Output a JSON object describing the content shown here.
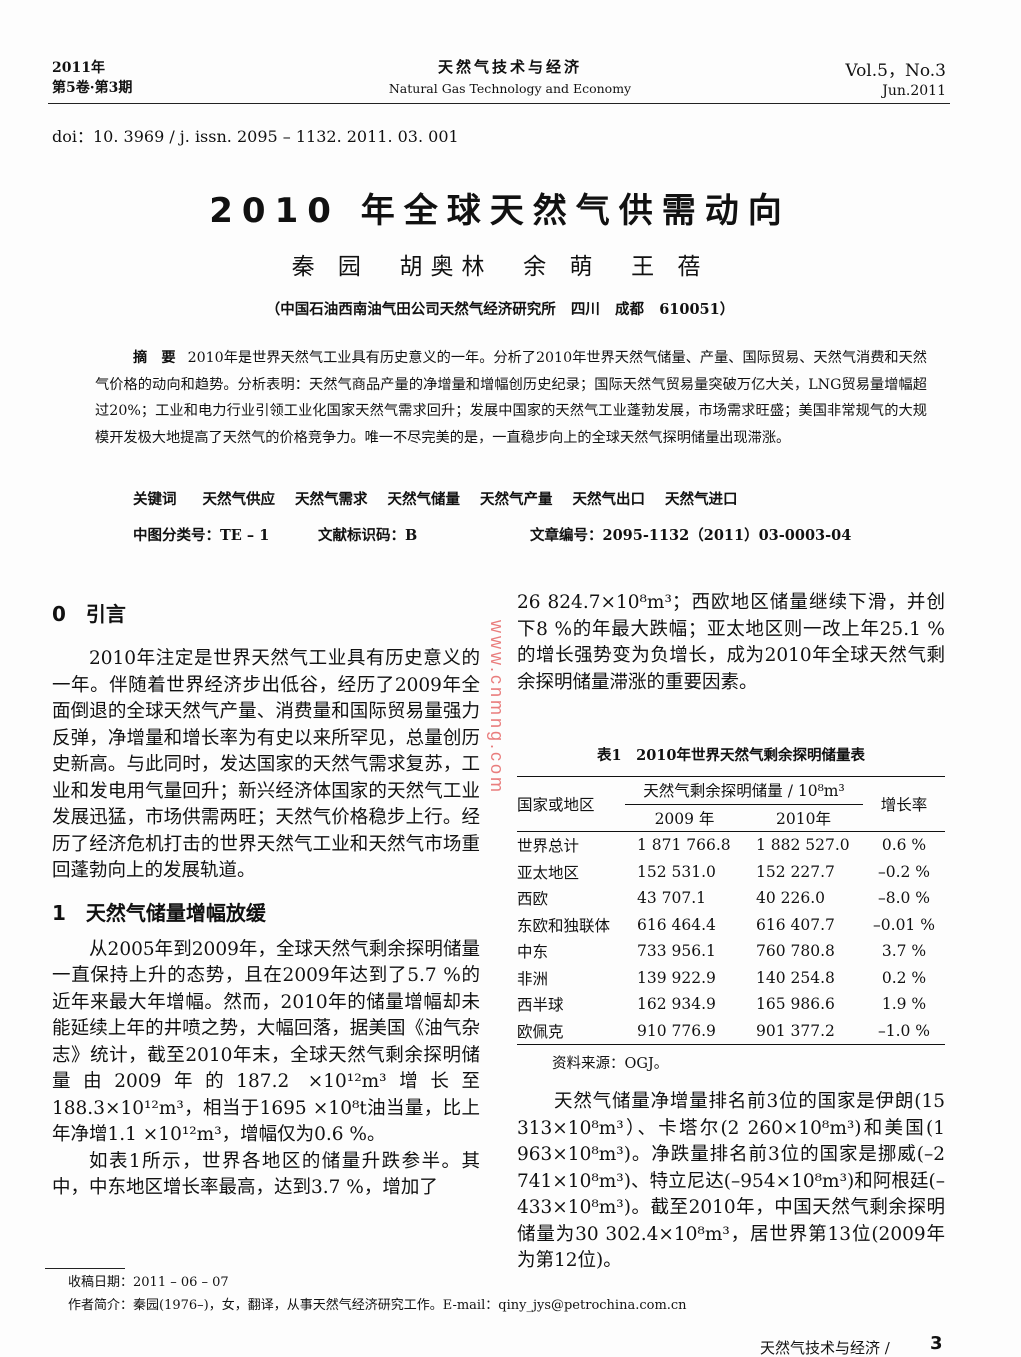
{
  "header": {
    "year": "2011年",
    "volume_issue": "第5卷·第3期",
    "journal_cn": "天然气技术与经济",
    "journal_en": "Natural Gas Technology and Economy",
    "vol_no": "Vol.5，No.3",
    "date": "Jun.2011"
  },
  "doi": "doi：10. 3969 / j. issn. 2095 – 1132. 2011. 03. 001",
  "title": "2010 年全球天然气供需动向",
  "authors": "秦 园  胡奥林  余 萌  王 蓓",
  "affiliation": "（中国石油西南油气田公司天然气经济研究所   四川   成都   610051）",
  "abstract": {
    "label": "摘　要",
    "text": "2010年是世界天然气工业具有历史意义的一年。分析了2010年世界天然气储量、产量、国际贸易、天然气消费和天然气价格的动向和趋势。分析表明：天然气商品产量的净增量和增幅创历史纪录；国际天然气贸易量突破万亿大关，LNG贸易量增幅超过20%；工业和电力行业引领工业化国家天然气需求回升；发展中国家的天然气工业蓬勃发展，市场需求旺盛；美国非常规气的大规模开发极大地提高了天然气的价格竞争力。唯一不尽完美的是，一直稳步向上的全球天然气探明储量出现滞涨。"
  },
  "keywords": {
    "label": "关键词",
    "items": [
      "天然气供应",
      "天然气需求",
      "天然气储量",
      "天然气产量",
      "天然气出口",
      "天然气进口"
    ]
  },
  "classification": {
    "clc": "中图分类号：TE – 1",
    "doc_code": "文献标识码：B",
    "article_no": "文章编号：2095-1132（2011）03-0003-04"
  },
  "watermark": "www.cnmng.com",
  "sections": {
    "s0_title": "0　引言",
    "s0_p1": "2010年注定是世界天然气工业具有历史意义的一年。伴随着世界经济步出低谷，经历了2009年全面倒退的全球天然气产量、消费量和国际贸易量强力反弹，净增量和增长率为有史以来所罕见，总量创历史新高。与此同时，发达国家的天然气需求复苏，工业和发电用气量回升；新兴经济体国家的天然气工业发展迅猛，市场供需两旺；天然气价格稳步上行。经历了经济危机打击的世界天然气工业和天然气市场重回蓬勃向上的发展轨道。",
    "s1_title": "1　天然气储量增幅放缓",
    "s1_p1": "从2005年到2009年，全球天然气剩余探明储量一直保持上升的态势，且在2009年达到了5.7 %的近年来最大年增幅。然而，2010年的储量增幅却未能延续上年的井喷之势，大幅回落，据美国《油气杂志》统计，截至2010年末，全球天然气剩余探明储量由2009年的187.2 ×10¹²m³增长至188.3×10¹²m³，相当于1695 ×10⁸t油当量，比上年净增1.1 ×10¹²m³，增幅仅为0.6 %。",
    "s1_p2a": "如表1所示，世界各地区的储量升跌参半。其中，中东地区增长率最高，达到3.7 %，增加了",
    "s1_p2b": "26 824.7×10⁸m³；西欧地区储量继续下滑，并创下8 %的年最大跌幅；亚太地区则一改上年25.1 %的增长强势变为负增长，成为2010年全球天然气剩余探明储量滞涨的重要因素。",
    "s1_p3": "天然气储量净增量排名前3位的国家是伊朗(15 313×10⁸m³）、卡塔尔(2 260×10⁸m³)和美国(1 963×10⁸m³)。净跌量排名前3位的国家是挪威(–2 741×10⁸m³)、特立尼达(–954×10⁸m³)和阿根廷(–433×10⁸m³)。截至2010年，中国天然气剩余探明储量为30 302.4×10⁸m³，居世界第13位(2009年为第12位)。"
  },
  "table": {
    "caption": "表1　2010年世界天然气剩余探明储量表",
    "col_region": "国家或地区",
    "col_group": "天然气剩余探明储量 / 10⁸m³",
    "col_2009": "2009 年",
    "col_2010": "2010年",
    "col_growth": "增长率",
    "rows": [
      [
        "世界总计",
        "1 871 766.8",
        "1 882 527.0",
        "0.6 %"
      ],
      [
        "亚太地区",
        "152 531.0",
        "152 227.7",
        "–0.2 %"
      ],
      [
        "西欧",
        "43 707.1",
        "40 226.0",
        "–8.0 %"
      ],
      [
        "东欧和独联体",
        "616 464.4",
        "616 407.7",
        "–0.01 %"
      ],
      [
        "中东",
        "733 956.1",
        "760 780.8",
        "3.7 %"
      ],
      [
        "非洲",
        "139 922.9",
        "140 254.8",
        "0.2 %"
      ],
      [
        "西半球",
        "162 934.9",
        "165 986.6",
        "1.9 %"
      ],
      [
        "欧佩克",
        "910 776.9",
        "901 377.2",
        "–1.0 %"
      ]
    ],
    "source": "资料来源：OGJ。"
  },
  "footnote": {
    "received": "收稿日期：2011 – 06 – 07",
    "author_bio": "作者简介：秦园(1976–)，女，翻译，从事天然气经济研究工作。E-mail：qiny_jys@petrochina.com.cn"
  },
  "footer": {
    "journal": "天然气技术与经济 /",
    "page": "3"
  }
}
